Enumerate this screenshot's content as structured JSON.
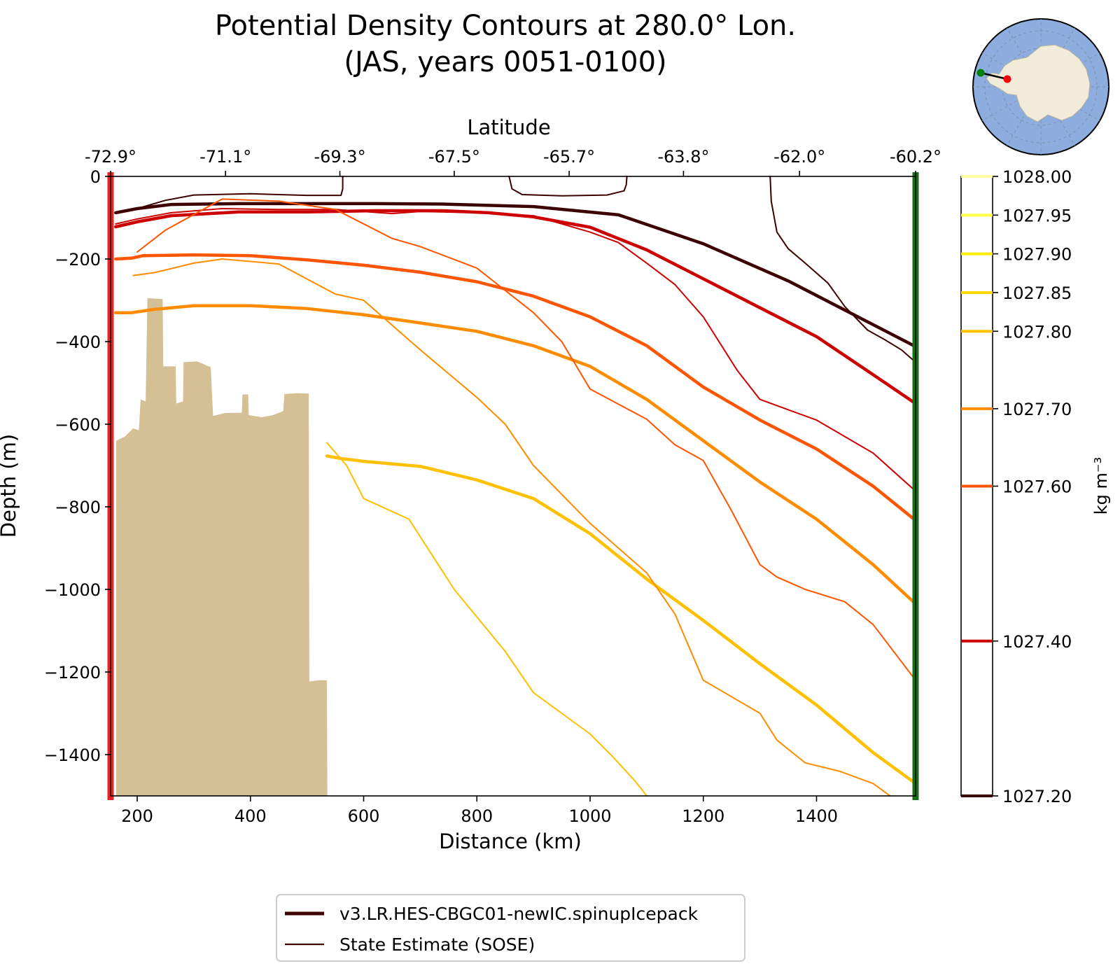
{
  "chart_data": {
    "type": "line",
    "title": "Potential Density Contours at 280.0° Lon.",
    "subtitle": "(JAS, years 0051-0100)",
    "xlabel": "Distance (km)",
    "ylabel": "Depth (m)",
    "x2label": "Latitude",
    "xlim": [
      153,
      1575
    ],
    "ylim": [
      -1500,
      0
    ],
    "x_ticks": [
      200,
      400,
      600,
      800,
      1000,
      1200,
      1400
    ],
    "x_tick_labels": [
      "200",
      "400",
      "600",
      "800",
      "1000",
      "1200",
      "1400"
    ],
    "y_ticks": [
      0,
      -200,
      -400,
      -600,
      -800,
      -1000,
      -1200,
      -1400
    ],
    "y_tick_labels": [
      "0",
      "−200",
      "−400",
      "−600",
      "−800",
      "−1000",
      "−1200",
      "−1400"
    ],
    "lat_ticks": [
      153,
      356,
      558,
      760,
      963,
      1165,
      1370,
      1575
    ],
    "lat_tick_labels": [
      "-72.9°",
      "-71.1°",
      "-69.3°",
      "-67.5°",
      "-65.7°",
      "-63.8°",
      "-62.0°",
      "-60.2°"
    ],
    "colorbar": {
      "label": "kg m⁻³",
      "range": [
        1027.2,
        1028.0
      ],
      "levels": [
        {
          "value": 1027.2,
          "label": "1027.20",
          "color": "#3d0000"
        },
        {
          "value": 1027.4,
          "label": "1027.40",
          "color": "#cc0000"
        },
        {
          "value": 1027.6,
          "label": "1027.60",
          "color": "#ff5500"
        },
        {
          "value": 1027.7,
          "label": "1027.70",
          "color": "#ff8c00"
        },
        {
          "value": 1027.8,
          "label": "1027.80",
          "color": "#ffc000"
        },
        {
          "value": 1027.85,
          "label": "1027.85",
          "color": "#ffd700"
        },
        {
          "value": 1027.9,
          "label": "1027.90",
          "color": "#ffee00"
        },
        {
          "value": 1027.95,
          "label": "1027.95",
          "color": "#ffff44"
        },
        {
          "value": 1028.0,
          "label": "1028.00",
          "color": "#ffffa0"
        }
      ]
    },
    "legend": {
      "placement": "below",
      "entries": [
        {
          "label": "v3.LR.HES-CBGC01-newIC.spinupIcepack",
          "style": "thick",
          "color": "#3d0000"
        },
        {
          "label": "State Estimate (SOSE)",
          "style": "thin",
          "color": "#3d0000"
        }
      ]
    },
    "bathymetry": {
      "color": "#d5bf95",
      "points": [
        [
          163,
          -1500
        ],
        [
          163,
          -640
        ],
        [
          178,
          -630
        ],
        [
          193,
          -610
        ],
        [
          203,
          -615
        ],
        [
          206,
          -540
        ],
        [
          215,
          -545
        ],
        [
          218,
          -295
        ],
        [
          245,
          -297
        ],
        [
          246,
          -460
        ],
        [
          268,
          -460
        ],
        [
          269,
          -550
        ],
        [
          281,
          -545
        ],
        [
          282,
          -450
        ],
        [
          306,
          -448
        ],
        [
          330,
          -462
        ],
        [
          334,
          -580
        ],
        [
          355,
          -573
        ],
        [
          385,
          -572
        ],
        [
          386,
          -528
        ],
        [
          396,
          -528
        ],
        [
          397,
          -578
        ],
        [
          420,
          -583
        ],
        [
          440,
          -578
        ],
        [
          458,
          -568
        ],
        [
          460,
          -527
        ],
        [
          482,
          -525
        ],
        [
          503,
          -526
        ],
        [
          504,
          -1223
        ],
        [
          520,
          -1220
        ],
        [
          535,
          -1220
        ],
        [
          536,
          -1500
        ]
      ]
    },
    "section_markers": [
      {
        "x": 153,
        "color": "#ee2222"
      },
      {
        "x": 1575,
        "color": "#157015"
      }
    ],
    "inset_map": {
      "ocean_color": "#8eaddf",
      "land_color": "#f0ecd9",
      "start_color": "#008000",
      "end_color": "#ff0000"
    },
    "series": [
      {
        "model": "model",
        "density": 1027.2,
        "color": "#3d0000",
        "x": [
          162,
          200,
          260,
          380,
          500,
          620,
          740,
          900,
          1050,
          1200,
          1350,
          1575
        ],
        "y": [
          -88,
          -78,
          -68,
          -66,
          -66,
          -66,
          -67,
          -73,
          -93,
          -163,
          -253,
          -412
        ]
      },
      {
        "model": "model",
        "density": 1027.4,
        "color": "#cc0000",
        "x": [
          162,
          200,
          260,
          380,
          500,
          620,
          740,
          820,
          900,
          1000,
          1100,
          1200,
          1300,
          1400,
          1500,
          1575
        ],
        "y": [
          -122,
          -110,
          -95,
          -86,
          -86,
          -83,
          -83,
          -88,
          -98,
          -123,
          -178,
          -248,
          -318,
          -388,
          -480,
          -550
        ]
      },
      {
        "model": "model",
        "density": 1027.6,
        "color": "#ff5500",
        "x": [
          162,
          190,
          210,
          300,
          400,
          500,
          600,
          700,
          800,
          900,
          1000,
          1100,
          1200,
          1300,
          1400,
          1500,
          1575
        ],
        "y": [
          -200,
          -198,
          -192,
          -190,
          -192,
          -202,
          -215,
          -232,
          -255,
          -290,
          -340,
          -410,
          -510,
          -590,
          -660,
          -750,
          -833
        ]
      },
      {
        "model": "model",
        "density": 1027.7,
        "color": "#ff8c00",
        "x": [
          162,
          190,
          230,
          300,
          400,
          500,
          600,
          700,
          800,
          900,
          1000,
          1100,
          1200,
          1300,
          1400,
          1500,
          1575
        ],
        "y": [
          -330,
          -330,
          -322,
          -313,
          -313,
          -320,
          -335,
          -355,
          -375,
          -410,
          -460,
          -540,
          -640,
          -740,
          -830,
          -940,
          -1035
        ]
      },
      {
        "model": "model",
        "density": 1027.8,
        "color": "#ffc000",
        "x": [
          535,
          560,
          600,
          700,
          800,
          900,
          1000,
          1100,
          1200,
          1300,
          1400,
          1500,
          1575
        ],
        "y": [
          -677,
          -683,
          -690,
          -702,
          -735,
          -780,
          -865,
          -975,
          -1075,
          -1180,
          -1280,
          -1395,
          -1470
        ]
      },
      {
        "model": "SOSE",
        "density": 1027.2,
        "color": "#3d0000",
        "x": [
          162,
          200,
          250,
          300,
          400,
          500,
          560,
          563,
          563
        ],
        "y": [
          -88,
          -78,
          -58,
          -45,
          -42,
          -46,
          -46,
          -30,
          0
        ]
      },
      {
        "model": "SOSE",
        "density": 1027.2,
        "color": "#3d0000",
        "x": [
          857,
          862,
          880,
          950,
          1030,
          1060,
          1064,
          1065
        ],
        "y": [
          0,
          -30,
          -44,
          -47,
          -45,
          -35,
          -20,
          0
        ]
      },
      {
        "model": "SOSE",
        "density": 1027.2,
        "color": "#3d0000",
        "x": [
          1318,
          1320,
          1330,
          1350,
          1380,
          1420,
          1450,
          1490,
          1520,
          1550,
          1575
        ],
        "y": [
          0,
          -60,
          -135,
          -175,
          -210,
          -258,
          -315,
          -372,
          -395,
          -420,
          -450
        ]
      },
      {
        "model": "SOSE",
        "density": 1027.4,
        "color": "#cc0000",
        "x": [
          162,
          200,
          260,
          350,
          450,
          550,
          650,
          700,
          800,
          900,
          1000,
          1050,
          1100,
          1150,
          1200,
          1260,
          1300,
          1400,
          1500,
          1575
        ],
        "y": [
          -115,
          -103,
          -88,
          -78,
          -80,
          -80,
          -90,
          -85,
          -88,
          -95,
          -135,
          -160,
          -210,
          -262,
          -340,
          -470,
          -540,
          -590,
          -670,
          -762
        ]
      },
      {
        "model": "SOSE",
        "density": 1027.6,
        "color": "#ff5500",
        "x": [
          200,
          250,
          350,
          450,
          550,
          650,
          700,
          800,
          900,
          950,
          1000,
          1100,
          1150,
          1200,
          1250,
          1300,
          1330,
          1380,
          1450,
          1500,
          1575
        ],
        "y": [
          -183,
          -130,
          -55,
          -60,
          -80,
          -150,
          -170,
          -222,
          -330,
          -400,
          -515,
          -588,
          -650,
          -688,
          -810,
          -940,
          -970,
          -1000,
          -1030,
          -1085,
          -1220
        ]
      },
      {
        "model": "SOSE",
        "density": 1027.7,
        "color": "#ff8c00",
        "x": [
          193,
          230,
          300,
          350,
          450,
          550,
          600,
          700,
          800,
          850,
          900,
          1000,
          1100,
          1150,
          1200,
          1300,
          1330,
          1380,
          1440,
          1500,
          1530
        ],
        "y": [
          -240,
          -233,
          -210,
          -200,
          -212,
          -285,
          -300,
          -420,
          -535,
          -600,
          -700,
          -840,
          -960,
          -1060,
          -1220,
          -1300,
          -1365,
          -1420,
          -1440,
          -1470,
          -1500
        ]
      },
      {
        "model": "SOSE",
        "density": 1027.8,
        "color": "#ffc000",
        "x": [
          535,
          570,
          600,
          680,
          760,
          850,
          900,
          950,
          1000,
          1040,
          1080,
          1100
        ],
        "y": [
          -645,
          -700,
          -780,
          -830,
          -1000,
          -1150,
          -1250,
          -1300,
          -1350,
          -1405,
          -1465,
          -1500
        ]
      }
    ]
  }
}
